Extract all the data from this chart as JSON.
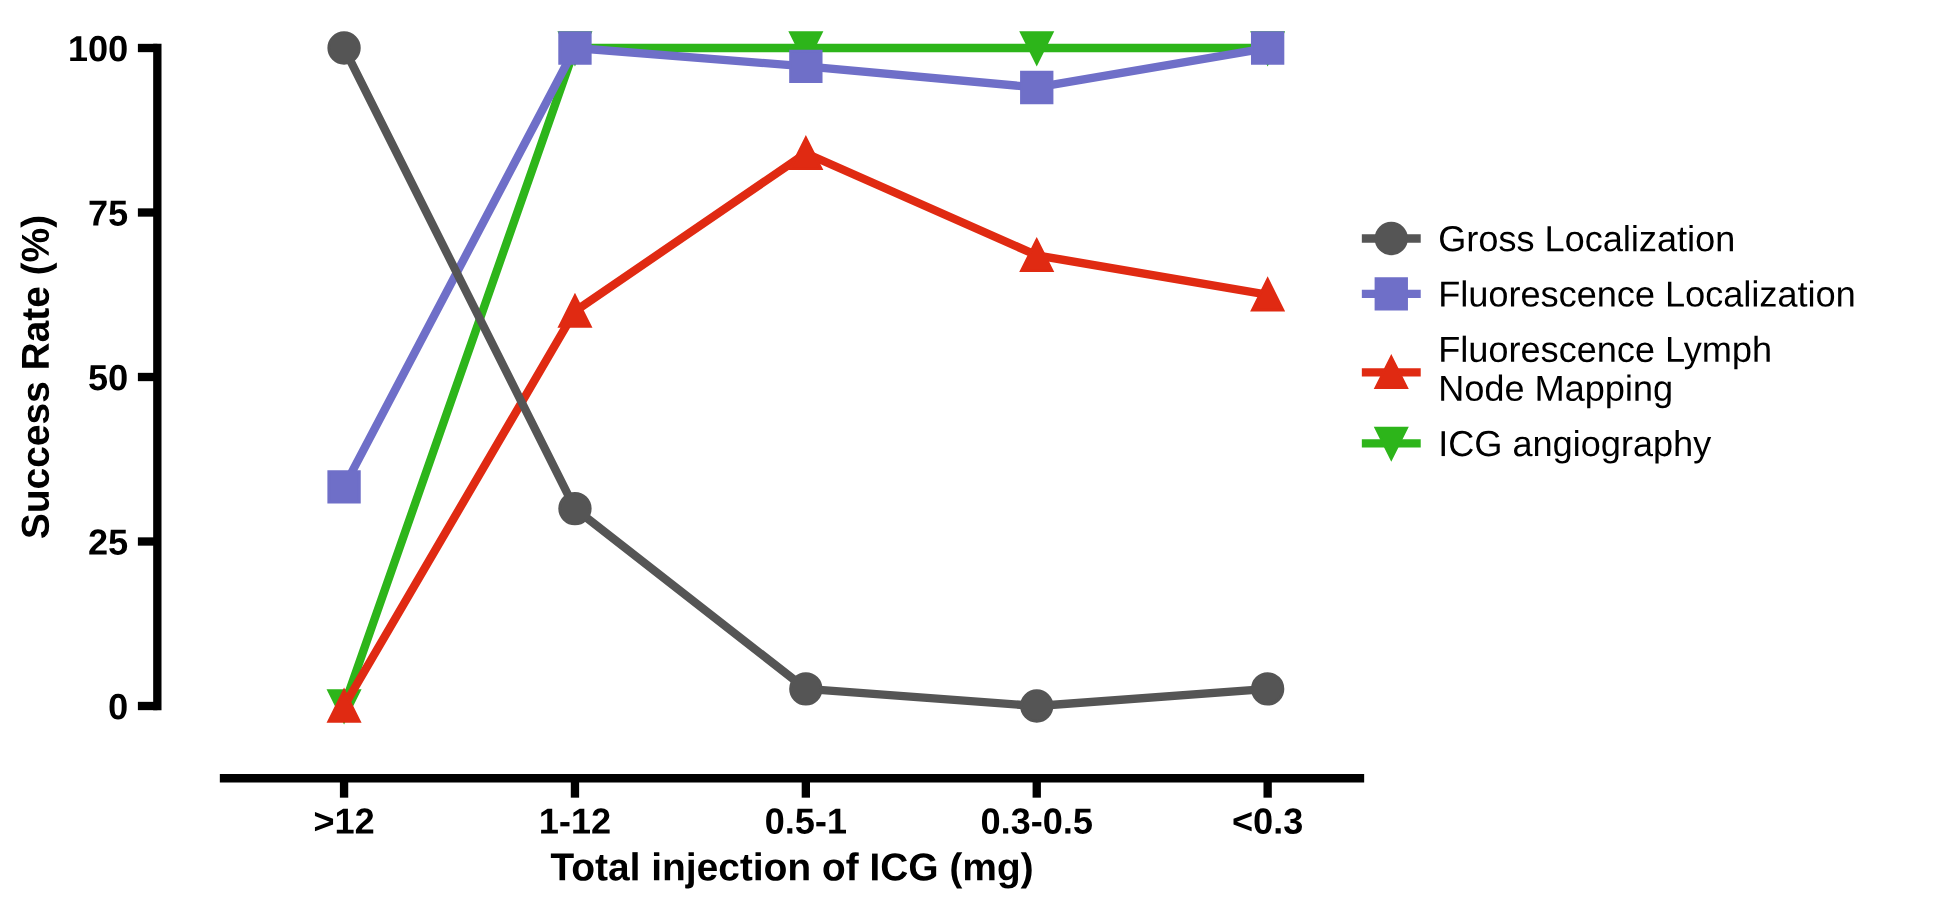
{
  "chart_data": {
    "type": "line",
    "xlabel": "Total injection of ICG (mg)",
    "ylabel": "Success Rate (%)",
    "categories": [
      ">12",
      "1-12",
      "0.5-1",
      "0.3-0.5",
      "<0.3"
    ],
    "series": [
      {
        "name": "Gross Localization",
        "color": "#555555",
        "marker": "circle",
        "values": [
          100,
          30,
          2.6,
          0,
          2.6
        ]
      },
      {
        "name": "Fluorescence Localization",
        "color": "#6f6fc8",
        "marker": "square",
        "values": [
          33.3,
          100,
          97.2,
          94,
          100
        ]
      },
      {
        "name": "Fluorescence Lymph\nNode Mapping",
        "color": "#e02a12",
        "marker": "triangle",
        "values": [
          0,
          60,
          84,
          68.5,
          62.5
        ]
      },
      {
        "name": "ICG angiography",
        "color": "#2db51a",
        "marker": "triangle_down",
        "values": [
          0,
          100,
          100,
          100,
          100
        ]
      }
    ],
    "ylim": [
      0,
      100
    ],
    "yticks": [
      0,
      25,
      50,
      75,
      100
    ],
    "grid": false,
    "legend": "right",
    "line_style": "solid"
  }
}
